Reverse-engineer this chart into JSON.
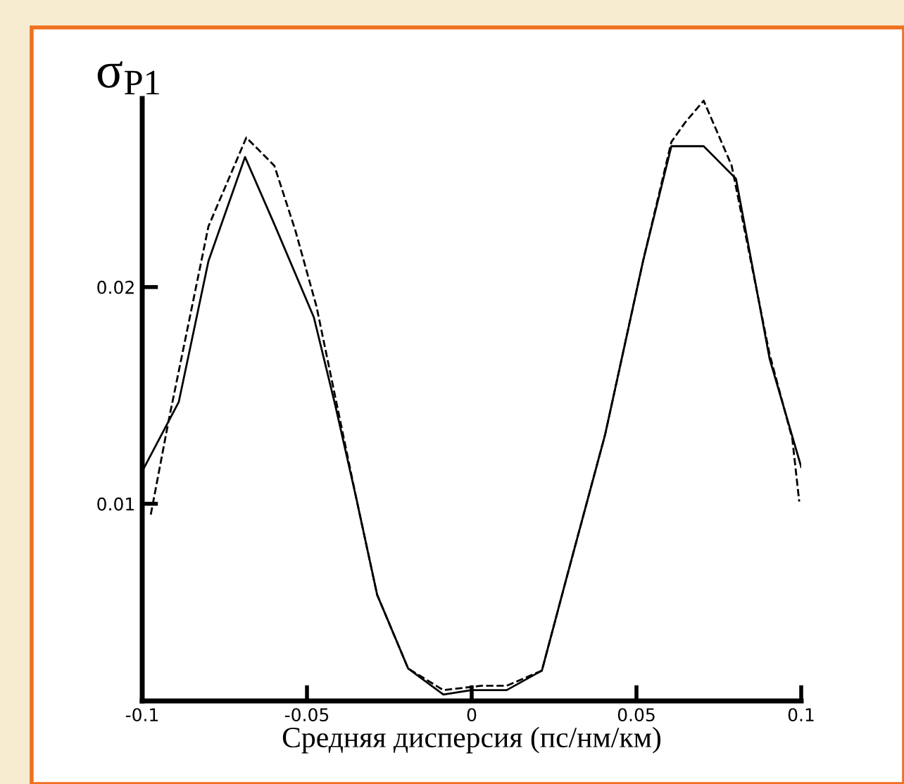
{
  "chart_data": {
    "type": "line",
    "ylabel": "σ$_{P1}$",
    "xlabel": "Средняя дисперсия (пс/нм/км)",
    "xlim": [
      -0.1,
      0.1
    ],
    "xticks": [
      -0.1,
      -0.05,
      0,
      0.05,
      0.1
    ],
    "ylim": [
      0.0009,
      0.0287
    ],
    "yticks": [
      0.01,
      0.02
    ],
    "series": [
      {
        "color": "#000000",
        "line_style": "solid",
        "x": [
          -0.1,
          -0.0889,
          -0.0799,
          -0.0688,
          -0.0599,
          -0.0479,
          -0.0415,
          -0.0351,
          -0.0287,
          -0.0193,
          -0.0086,
          -0.0001,
          0.0106,
          0.0213,
          0.029,
          0.0405,
          0.052,
          0.0606,
          0.0704,
          0.0802,
          0.0904,
          0.1
        ],
        "values": [
          0.0115,
          0.0147,
          0.0212,
          0.026,
          0.0229,
          0.0186,
          0.0146,
          0.0103,
          0.0058,
          0.0024,
          0.0012,
          0.0014,
          0.0014,
          0.0023,
          0.0067,
          0.0132,
          0.0212,
          0.0265,
          0.0265,
          0.025,
          0.0167,
          0.0117
        ]
      },
      {
        "color": "#000000",
        "line_style": "dashed",
        "x": [
          -0.0974,
          -0.0919,
          -0.0799,
          -0.0684,
          -0.0599,
          -0.0535,
          -0.0471,
          -0.0351,
          -0.0287,
          -0.0193,
          -0.0086,
          0.0029,
          0.0106,
          0.0213,
          0.029,
          0.0405,
          0.052,
          0.0606,
          0.0648,
          0.0704,
          0.0789,
          0.0904,
          0.0973,
          0.0994
        ],
        "values": [
          0.0095,
          0.0139,
          0.0228,
          0.0269,
          0.0256,
          0.0226,
          0.0191,
          0.0103,
          0.0058,
          0.0024,
          0.0014,
          0.0016,
          0.0016,
          0.0023,
          0.0067,
          0.0132,
          0.0212,
          0.0267,
          0.0276,
          0.0286,
          0.0256,
          0.0169,
          0.013,
          0.0101
        ]
      }
    ]
  }
}
